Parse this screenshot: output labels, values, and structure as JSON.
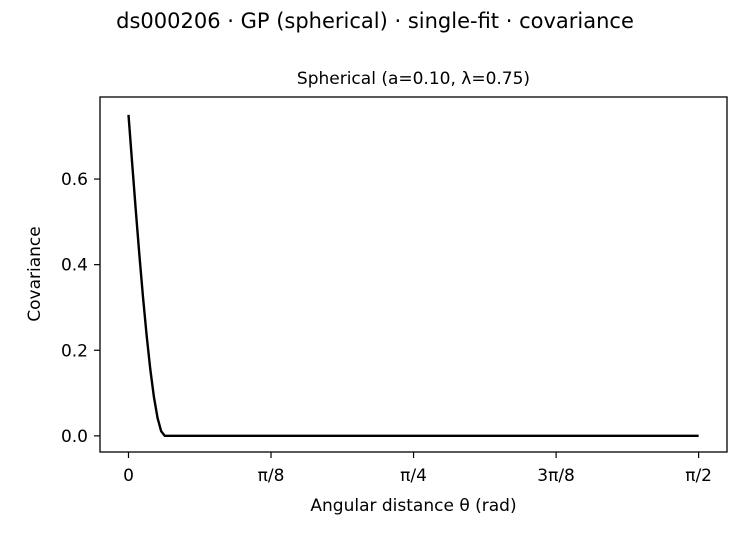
{
  "figure": {
    "suptitle": "ds000206 · GP (spherical) · single-fit · covariance"
  },
  "chart_data": {
    "type": "line",
    "title": "Spherical (a=0.10, λ=0.75)",
    "xlabel": "Angular distance θ (rad)",
    "ylabel": "Covariance",
    "xlim": [
      -0.0785,
      1.649
    ],
    "ylim": [
      -0.0377,
      0.7917
    ],
    "grid": false,
    "x_ticks": [
      {
        "value": 0,
        "label": "0"
      },
      {
        "value": 0.3927,
        "label": "π/8"
      },
      {
        "value": 0.7854,
        "label": "π/4"
      },
      {
        "value": 1.1781,
        "label": "3π/8"
      },
      {
        "value": 1.5708,
        "label": "π/2"
      }
    ],
    "y_ticks": [
      {
        "value": 0.0,
        "label": "0.0"
      },
      {
        "value": 0.2,
        "label": "0.2"
      },
      {
        "value": 0.4,
        "label": "0.4"
      },
      {
        "value": 0.6,
        "label": "0.6"
      }
    ],
    "series": [
      {
        "color": "#000000",
        "x": [
          0,
          0.01,
          0.02,
          0.03,
          0.04,
          0.05,
          0.06,
          0.07,
          0.08,
          0.09,
          0.1,
          0.2,
          0.4,
          0.6,
          0.8,
          1.0,
          1.2,
          1.4,
          1.5708
        ],
        "y": [
          0.75,
          0.6379,
          0.528,
          0.4226,
          0.324,
          0.2344,
          0.156,
          0.0911,
          0.042,
          0.0109,
          0.0,
          0.0,
          0.0,
          0.0,
          0.0,
          0.0,
          0.0,
          0.0,
          0.0
        ]
      }
    ]
  }
}
